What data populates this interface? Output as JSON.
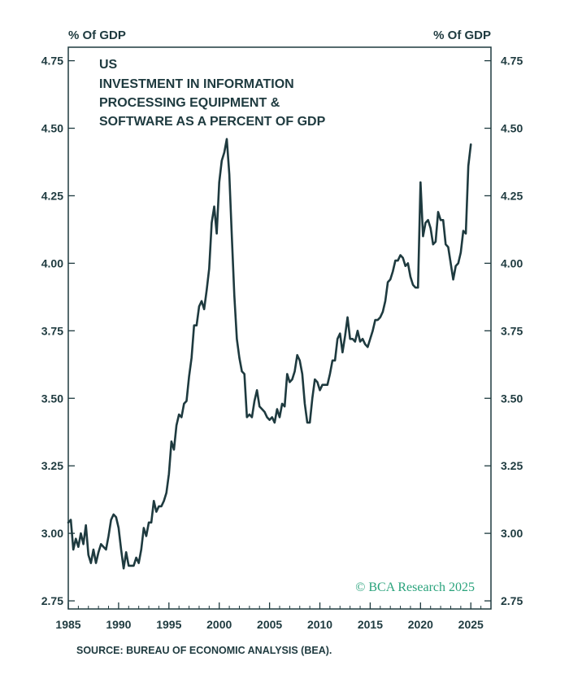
{
  "chart_data": {
    "type": "line",
    "title_lines": [
      "US",
      "INVESTMENT IN INFORMATION",
      "PROCESSING EQUIPMENT &",
      "SOFTWARE AS A PERCENT OF GDP"
    ],
    "y_unit_left": "% Of GDP",
    "y_unit_right": "% Of GDP",
    "source": "SOURCE: BUREAU OF ECONOMIC ANALYSIS (BEA).",
    "watermark": "© BCA Research 2025",
    "ylim": [
      2.72,
      4.8
    ],
    "xlim": [
      1985.0,
      2027.0
    ],
    "y_ticks": [
      "4.75",
      "4.50",
      "4.25",
      "4.00",
      "3.75",
      "3.50",
      "3.25",
      "3.00",
      "2.75"
    ],
    "x_ticks": [
      "1985",
      "1990",
      "1995",
      "2000",
      "2005",
      "2010",
      "2015",
      "2020",
      "2025"
    ],
    "grid": false,
    "series": [
      {
        "color": "#1e3a3f",
        "points": [
          [
            1985.0,
            3.04
          ],
          [
            1985.25,
            3.05
          ],
          [
            1985.5,
            2.94
          ],
          [
            1985.75,
            2.98
          ],
          [
            1986.0,
            2.95
          ],
          [
            1986.25,
            3.0
          ],
          [
            1986.5,
            2.96
          ],
          [
            1986.75,
            3.03
          ],
          [
            1987.0,
            2.92
          ],
          [
            1987.25,
            2.89
          ],
          [
            1987.5,
            2.94
          ],
          [
            1987.75,
            2.89
          ],
          [
            1988.0,
            2.93
          ],
          [
            1988.25,
            2.96
          ],
          [
            1988.5,
            2.95
          ],
          [
            1988.75,
            2.94
          ],
          [
            1989.0,
            2.99
          ],
          [
            1989.25,
            3.05
          ],
          [
            1989.5,
            3.07
          ],
          [
            1989.75,
            3.06
          ],
          [
            1990.0,
            3.02
          ],
          [
            1990.25,
            2.94
          ],
          [
            1990.5,
            2.87
          ],
          [
            1990.75,
            2.93
          ],
          [
            1991.0,
            2.88
          ],
          [
            1991.25,
            2.88
          ],
          [
            1991.5,
            2.88
          ],
          [
            1991.75,
            2.91
          ],
          [
            1992.0,
            2.89
          ],
          [
            1992.25,
            2.94
          ],
          [
            1992.5,
            3.02
          ],
          [
            1992.75,
            2.99
          ],
          [
            1993.0,
            3.04
          ],
          [
            1993.25,
            3.04
          ],
          [
            1993.5,
            3.12
          ],
          [
            1993.75,
            3.08
          ],
          [
            1994.0,
            3.1
          ],
          [
            1994.25,
            3.1
          ],
          [
            1994.5,
            3.12
          ],
          [
            1994.75,
            3.15
          ],
          [
            1995.0,
            3.22
          ],
          [
            1995.25,
            3.34
          ],
          [
            1995.5,
            3.31
          ],
          [
            1995.75,
            3.4
          ],
          [
            1996.0,
            3.44
          ],
          [
            1996.25,
            3.43
          ],
          [
            1996.5,
            3.48
          ],
          [
            1996.75,
            3.49
          ],
          [
            1997.0,
            3.58
          ],
          [
            1997.25,
            3.65
          ],
          [
            1997.5,
            3.77
          ],
          [
            1997.75,
            3.77
          ],
          [
            1998.0,
            3.84
          ],
          [
            1998.25,
            3.86
          ],
          [
            1998.5,
            3.83
          ],
          [
            1998.75,
            3.9
          ],
          [
            1999.0,
            3.98
          ],
          [
            1999.25,
            4.15
          ],
          [
            1999.5,
            4.21
          ],
          [
            1999.75,
            4.11
          ],
          [
            2000.0,
            4.3
          ],
          [
            2000.25,
            4.38
          ],
          [
            2000.5,
            4.41
          ],
          [
            2000.75,
            4.46
          ],
          [
            2001.0,
            4.33
          ],
          [
            2001.25,
            4.1
          ],
          [
            2001.5,
            3.88
          ],
          [
            2001.75,
            3.72
          ],
          [
            2002.0,
            3.65
          ],
          [
            2002.25,
            3.6
          ],
          [
            2002.5,
            3.59
          ],
          [
            2002.75,
            3.43
          ],
          [
            2003.0,
            3.44
          ],
          [
            2003.25,
            3.43
          ],
          [
            2003.5,
            3.49
          ],
          [
            2003.75,
            3.53
          ],
          [
            2004.0,
            3.47
          ],
          [
            2004.25,
            3.46
          ],
          [
            2004.5,
            3.45
          ],
          [
            2004.75,
            3.43
          ],
          [
            2005.0,
            3.42
          ],
          [
            2005.25,
            3.43
          ],
          [
            2005.5,
            3.41
          ],
          [
            2005.75,
            3.46
          ],
          [
            2006.0,
            3.43
          ],
          [
            2006.25,
            3.48
          ],
          [
            2006.5,
            3.47
          ],
          [
            2006.75,
            3.59
          ],
          [
            2007.0,
            3.56
          ],
          [
            2007.25,
            3.57
          ],
          [
            2007.5,
            3.6
          ],
          [
            2007.75,
            3.66
          ],
          [
            2008.0,
            3.64
          ],
          [
            2008.25,
            3.59
          ],
          [
            2008.5,
            3.48
          ],
          [
            2008.75,
            3.41
          ],
          [
            2009.0,
            3.41
          ],
          [
            2009.25,
            3.5
          ],
          [
            2009.5,
            3.57
          ],
          [
            2009.75,
            3.56
          ],
          [
            2010.0,
            3.53
          ],
          [
            2010.25,
            3.55
          ],
          [
            2010.5,
            3.55
          ],
          [
            2010.75,
            3.55
          ],
          [
            2011.0,
            3.59
          ],
          [
            2011.25,
            3.64
          ],
          [
            2011.5,
            3.64
          ],
          [
            2011.75,
            3.72
          ],
          [
            2012.0,
            3.74
          ],
          [
            2012.25,
            3.67
          ],
          [
            2012.5,
            3.73
          ],
          [
            2012.75,
            3.8
          ],
          [
            2013.0,
            3.72
          ],
          [
            2013.25,
            3.72
          ],
          [
            2013.5,
            3.71
          ],
          [
            2013.75,
            3.75
          ],
          [
            2014.0,
            3.71
          ],
          [
            2014.25,
            3.72
          ],
          [
            2014.5,
            3.7
          ],
          [
            2014.75,
            3.69
          ],
          [
            2015.0,
            3.72
          ],
          [
            2015.25,
            3.75
          ],
          [
            2015.5,
            3.79
          ],
          [
            2015.75,
            3.79
          ],
          [
            2016.0,
            3.8
          ],
          [
            2016.25,
            3.82
          ],
          [
            2016.5,
            3.86
          ],
          [
            2016.75,
            3.93
          ],
          [
            2017.0,
            3.94
          ],
          [
            2017.25,
            3.97
          ],
          [
            2017.5,
            4.01
          ],
          [
            2017.75,
            4.01
          ],
          [
            2018.0,
            4.03
          ],
          [
            2018.25,
            4.02
          ],
          [
            2018.5,
            3.99
          ],
          [
            2018.75,
            4.0
          ],
          [
            2019.0,
            3.95
          ],
          [
            2019.25,
            3.92
          ],
          [
            2019.5,
            3.91
          ],
          [
            2019.75,
            3.91
          ],
          [
            2020.0,
            4.3
          ],
          [
            2020.25,
            4.1
          ],
          [
            2020.5,
            4.15
          ],
          [
            2020.75,
            4.16
          ],
          [
            2021.0,
            4.13
          ],
          [
            2021.25,
            4.07
          ],
          [
            2021.5,
            4.08
          ],
          [
            2021.75,
            4.19
          ],
          [
            2022.0,
            4.16
          ],
          [
            2022.25,
            4.16
          ],
          [
            2022.5,
            4.07
          ],
          [
            2022.75,
            4.06
          ],
          [
            2023.0,
            4.0
          ],
          [
            2023.25,
            3.94
          ],
          [
            2023.5,
            3.99
          ],
          [
            2023.75,
            4.0
          ],
          [
            2024.0,
            4.04
          ],
          [
            2024.25,
            4.12
          ],
          [
            2024.5,
            4.11
          ],
          [
            2024.75,
            4.36
          ],
          [
            2025.0,
            4.44
          ]
        ]
      }
    ]
  }
}
